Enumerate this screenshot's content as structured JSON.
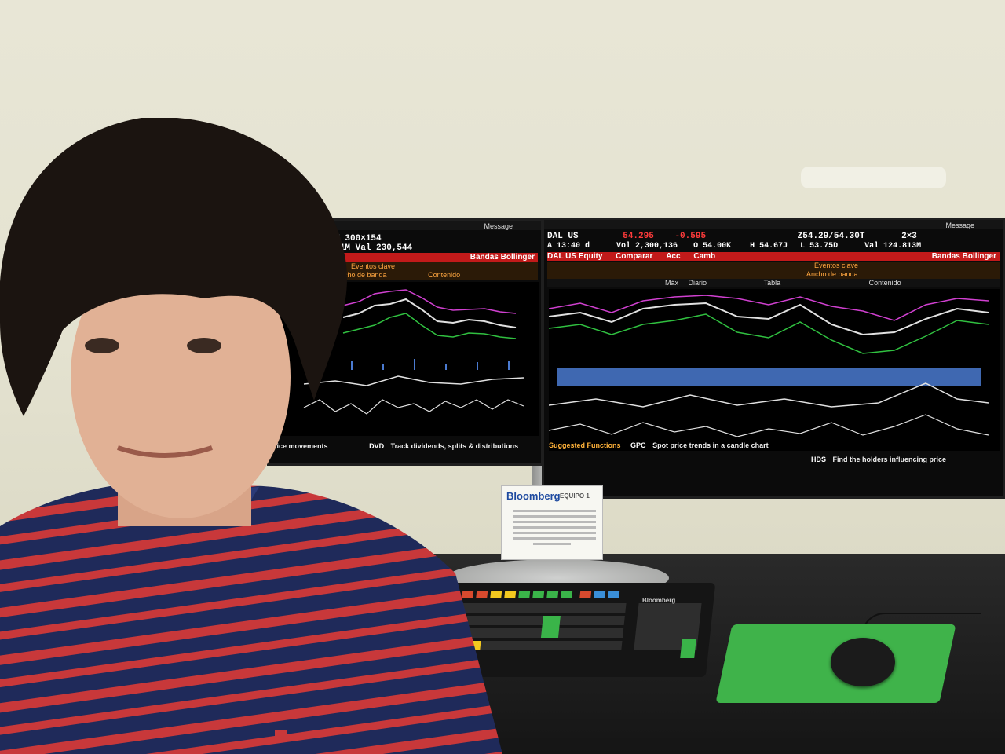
{
  "scene": {
    "description_tags": [
      "person",
      "bloomberg-terminal",
      "dual-monitors",
      "keyboard",
      "mouse",
      "mousepad"
    ]
  },
  "left_monitor": {
    "message_label": "Message",
    "ticker_line_1": "M19.30/19.65M   300×154",
    "ticker_line_2": "19.70M  L 19.01M  Val  230,544",
    "indicator_title": "Bandas Bollinger",
    "toolbar_events": "Eventos clave",
    "toolbar_band": "Ancho de banda",
    "toolbar_content": "Contenido",
    "fn_left_text": "rice movements",
    "fn_code": "DVD",
    "fn_desc": "Track dividends, splits & distributions"
  },
  "right_monitor": {
    "message_label": "Message",
    "symbol": "DAL US",
    "last_price": "54.295",
    "change": "-0.595",
    "bid_ask": "Z54.29/54.30T",
    "size": "2×3",
    "time": "A 13:40 d",
    "volume": "Vol 2,300,136",
    "open": "O 54.00K",
    "high": "H 54.67J",
    "low": "L 53.75D",
    "value": "Val  124.813M",
    "security": "DAL US Equity",
    "compare": "Comparar",
    "actions": "Acc",
    "change_menu": "Camb",
    "indicator_title": "Bandas Bollinger",
    "toolbar_events": "Eventos clave",
    "toolbar_band": "Ancho de banda",
    "toolbar_content": "Contenido",
    "table_label": "Tabla",
    "daily_label": "Diario",
    "max_label": "Máx",
    "suggested_label": "Suggested Functions",
    "fn1_code": "GPC",
    "fn1_desc": "Spot price trends in a candle chart",
    "fn2_code": "HDS",
    "fn2_desc": "Find the holders influencing price"
  },
  "sign": {
    "brand": "Bloomberg",
    "team": "EQUIPO 1"
  },
  "keyboard": {
    "brand": "Bloomberg"
  },
  "colors": {
    "terminal_bg": "#000000",
    "bloomberg_red": "#c21a1a",
    "bloomberg_orange": "#ffa640",
    "series_magenta": "#d040d0",
    "series_green": "#30c040",
    "series_white": "#e0e0e0",
    "volume_blue": "#4a7ad0",
    "mousepad_green": "#3fb34a",
    "shirt_navy": "#1f2a5a",
    "shirt_stripe_red": "#c8383a"
  }
}
